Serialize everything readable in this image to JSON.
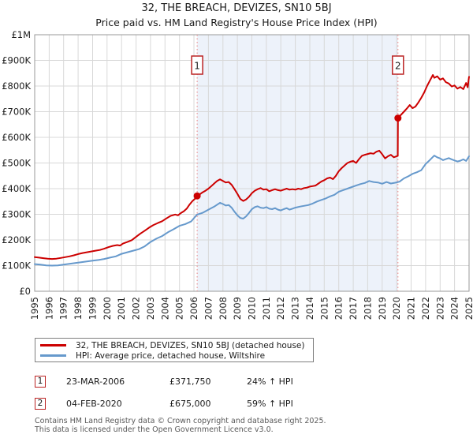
{
  "title": "32, THE BREACH, DEVIZES, SN10 5BJ",
  "subtitle": "Price paid vs. HM Land Registry's House Price Index (HPI)",
  "colors": {
    "property_line": "#cc0000",
    "hpi_line": "#6699cc",
    "shade": "#edf2fa",
    "grid": "#d8d8d8",
    "plot_border": "#999999",
    "event_line": "#e88080",
    "marker_box_border": "#bb2222",
    "marker_dot": "#cc0000",
    "axis_text": "#1a1a1a",
    "footer_text": "#5a5a5a"
  },
  "chart_data": {
    "type": "line",
    "title": "32, THE BREACH, DEVIZES, SN10 5BJ — Price paid vs. HPI",
    "xlabel": "",
    "ylabel": "",
    "x_range": [
      1995,
      2025
    ],
    "y_range_gbp": [
      0,
      1000000
    ],
    "grid": true,
    "legend_position": "bottom",
    "x_ticks": [
      1995,
      1996,
      1997,
      1998,
      1999,
      2000,
      2001,
      2002,
      2003,
      2004,
      2005,
      2006,
      2007,
      2008,
      2009,
      2010,
      2011,
      2012,
      2013,
      2014,
      2015,
      2016,
      2017,
      2018,
      2019,
      2020,
      2021,
      2022,
      2023,
      2024,
      2025
    ],
    "y_ticks": [
      {
        "label": "£0",
        "value": 0
      },
      {
        "label": "£100K",
        "value": 100
      },
      {
        "label": "£200K",
        "value": 200
      },
      {
        "label": "£300K",
        "value": 300
      },
      {
        "label": "£400K",
        "value": 400
      },
      {
        "label": "£500K",
        "value": 500
      },
      {
        "label": "£600K",
        "value": 600
      },
      {
        "label": "£700K",
        "value": 700
      },
      {
        "label": "£800K",
        "value": 800
      },
      {
        "label": "£900K",
        "value": 900
      },
      {
        "label": "£1M",
        "value": 1000
      }
    ],
    "shaded_region": {
      "from": 2006.22,
      "to": 2020.09
    },
    "sale_markers": [
      {
        "num": "1",
        "year": 2006.22,
        "value_k": 371.75
      },
      {
        "num": "2",
        "year": 2020.09,
        "value_k": 675
      }
    ],
    "series": [
      {
        "name": "32, THE BREACH, DEVIZES, SN10 5BJ (detached house)",
        "color_key": "property_line",
        "points": [
          [
            1995.0,
            133
          ],
          [
            1995.3,
            131
          ],
          [
            1995.6,
            129
          ],
          [
            1995.9,
            127
          ],
          [
            1996.2,
            126
          ],
          [
            1996.5,
            127
          ],
          [
            1996.8,
            130
          ],
          [
            1997.1,
            133
          ],
          [
            1997.4,
            136
          ],
          [
            1997.7,
            140
          ],
          [
            1998.0,
            145
          ],
          [
            1998.3,
            149
          ],
          [
            1998.6,
            152
          ],
          [
            1998.9,
            155
          ],
          [
            1999.2,
            158
          ],
          [
            1999.5,
            161
          ],
          [
            1999.8,
            166
          ],
          [
            2000.1,
            172
          ],
          [
            2000.4,
            177
          ],
          [
            2000.7,
            180
          ],
          [
            2000.9,
            178
          ],
          [
            2001.1,
            186
          ],
          [
            2001.4,
            192
          ],
          [
            2001.7,
            199
          ],
          [
            2002.0,
            212
          ],
          [
            2002.3,
            225
          ],
          [
            2002.6,
            236
          ],
          [
            2002.9,
            248
          ],
          [
            2003.2,
            258
          ],
          [
            2003.5,
            266
          ],
          [
            2003.8,
            273
          ],
          [
            2004.1,
            284
          ],
          [
            2004.4,
            294
          ],
          [
            2004.7,
            299
          ],
          [
            2004.9,
            296
          ],
          [
            2005.1,
            305
          ],
          [
            2005.3,
            312
          ],
          [
            2005.5,
            322
          ],
          [
            2005.7,
            338
          ],
          [
            2005.9,
            352
          ],
          [
            2006.1,
            362
          ],
          [
            2006.22,
            371.75
          ],
          [
            2006.4,
            378
          ],
          [
            2006.6,
            386
          ],
          [
            2006.8,
            392
          ],
          [
            2007.0,
            400
          ],
          [
            2007.2,
            410
          ],
          [
            2007.4,
            420
          ],
          [
            2007.6,
            430
          ],
          [
            2007.8,
            436
          ],
          [
            2008.0,
            430
          ],
          [
            2008.2,
            424
          ],
          [
            2008.4,
            426
          ],
          [
            2008.6,
            415
          ],
          [
            2008.8,
            398
          ],
          [
            2009.0,
            380
          ],
          [
            2009.2,
            360
          ],
          [
            2009.4,
            352
          ],
          [
            2009.6,
            358
          ],
          [
            2009.8,
            368
          ],
          [
            2010.0,
            382
          ],
          [
            2010.2,
            392
          ],
          [
            2010.4,
            398
          ],
          [
            2010.6,
            402
          ],
          [
            2010.8,
            396
          ],
          [
            2011.0,
            398
          ],
          [
            2011.2,
            390
          ],
          [
            2011.4,
            394
          ],
          [
            2011.6,
            398
          ],
          [
            2011.8,
            394
          ],
          [
            2012.0,
            392
          ],
          [
            2012.2,
            396
          ],
          [
            2012.4,
            400
          ],
          [
            2012.6,
            396
          ],
          [
            2012.8,
            398
          ],
          [
            2013.0,
            396
          ],
          [
            2013.2,
            400
          ],
          [
            2013.4,
            398
          ],
          [
            2013.6,
            402
          ],
          [
            2013.8,
            404
          ],
          [
            2014.0,
            408
          ],
          [
            2014.2,
            410
          ],
          [
            2014.4,
            412
          ],
          [
            2014.6,
            420
          ],
          [
            2014.8,
            428
          ],
          [
            2015.0,
            433
          ],
          [
            2015.2,
            440
          ],
          [
            2015.4,
            443
          ],
          [
            2015.6,
            437
          ],
          [
            2015.8,
            450
          ],
          [
            2016.0,
            468
          ],
          [
            2016.2,
            480
          ],
          [
            2016.4,
            490
          ],
          [
            2016.6,
            500
          ],
          [
            2016.8,
            505
          ],
          [
            2017.0,
            508
          ],
          [
            2017.2,
            500
          ],
          [
            2017.4,
            515
          ],
          [
            2017.6,
            528
          ],
          [
            2017.8,
            532
          ],
          [
            2018.0,
            535
          ],
          [
            2018.2,
            538
          ],
          [
            2018.4,
            536
          ],
          [
            2018.6,
            544
          ],
          [
            2018.8,
            548
          ],
          [
            2019.0,
            534
          ],
          [
            2019.2,
            518
          ],
          [
            2019.4,
            526
          ],
          [
            2019.6,
            532
          ],
          [
            2019.8,
            522
          ],
          [
            2020.08,
            528
          ],
          [
            2020.09,
            675
          ],
          [
            2020.3,
            688
          ],
          [
            2020.5,
            700
          ],
          [
            2020.7,
            712
          ],
          [
            2020.9,
            726
          ],
          [
            2021.1,
            714
          ],
          [
            2021.3,
            720
          ],
          [
            2021.5,
            736
          ],
          [
            2021.7,
            754
          ],
          [
            2021.9,
            775
          ],
          [
            2022.1,
            800
          ],
          [
            2022.3,
            822
          ],
          [
            2022.5,
            843
          ],
          [
            2022.6,
            832
          ],
          [
            2022.8,
            838
          ],
          [
            2023.0,
            825
          ],
          [
            2023.2,
            830
          ],
          [
            2023.4,
            815
          ],
          [
            2023.6,
            810
          ],
          [
            2023.8,
            798
          ],
          [
            2024.0,
            802
          ],
          [
            2024.2,
            790
          ],
          [
            2024.4,
            796
          ],
          [
            2024.6,
            788
          ],
          [
            2024.8,
            812
          ],
          [
            2024.9,
            795
          ],
          [
            2025.0,
            836
          ]
        ]
      },
      {
        "name": "HPI: Average price, detached house, Wiltshire",
        "color_key": "hpi_line",
        "points": [
          [
            1995.0,
            106
          ],
          [
            1995.4,
            104
          ],
          [
            1995.8,
            101
          ],
          [
            1996.2,
            100
          ],
          [
            1996.6,
            101
          ],
          [
            1997.0,
            104
          ],
          [
            1997.4,
            107
          ],
          [
            1997.8,
            110
          ],
          [
            1998.2,
            113
          ],
          [
            1998.6,
            116
          ],
          [
            1999.0,
            119
          ],
          [
            1999.4,
            122
          ],
          [
            1999.8,
            126
          ],
          [
            2000.2,
            131
          ],
          [
            2000.6,
            136
          ],
          [
            2001.0,
            146
          ],
          [
            2001.4,
            152
          ],
          [
            2001.8,
            158
          ],
          [
            2002.2,
            164
          ],
          [
            2002.6,
            175
          ],
          [
            2003.0,
            192
          ],
          [
            2003.4,
            205
          ],
          [
            2003.8,
            215
          ],
          [
            2004.2,
            230
          ],
          [
            2004.6,
            242
          ],
          [
            2005.0,
            255
          ],
          [
            2005.4,
            262
          ],
          [
            2005.8,
            272
          ],
          [
            2006.2,
            298
          ],
          [
            2006.6,
            306
          ],
          [
            2007.0,
            318
          ],
          [
            2007.4,
            330
          ],
          [
            2007.8,
            345
          ],
          [
            2008.0,
            340
          ],
          [
            2008.2,
            334
          ],
          [
            2008.4,
            336
          ],
          [
            2008.6,
            326
          ],
          [
            2008.8,
            310
          ],
          [
            2009.0,
            296
          ],
          [
            2009.2,
            286
          ],
          [
            2009.4,
            283
          ],
          [
            2009.6,
            292
          ],
          [
            2009.8,
            305
          ],
          [
            2010.0,
            320
          ],
          [
            2010.2,
            328
          ],
          [
            2010.4,
            331
          ],
          [
            2010.6,
            326
          ],
          [
            2010.8,
            324
          ],
          [
            2011.0,
            328
          ],
          [
            2011.2,
            322
          ],
          [
            2011.4,
            320
          ],
          [
            2011.6,
            324
          ],
          [
            2011.8,
            318
          ],
          [
            2012.0,
            315
          ],
          [
            2012.2,
            320
          ],
          [
            2012.4,
            324
          ],
          [
            2012.6,
            318
          ],
          [
            2012.8,
            322
          ],
          [
            2013.0,
            326
          ],
          [
            2013.3,
            330
          ],
          [
            2013.6,
            333
          ],
          [
            2013.9,
            336
          ],
          [
            2014.2,
            342
          ],
          [
            2014.5,
            350
          ],
          [
            2014.8,
            356
          ],
          [
            2015.1,
            362
          ],
          [
            2015.4,
            370
          ],
          [
            2015.7,
            376
          ],
          [
            2016.0,
            388
          ],
          [
            2016.3,
            394
          ],
          [
            2016.6,
            400
          ],
          [
            2016.9,
            406
          ],
          [
            2017.2,
            412
          ],
          [
            2017.5,
            418
          ],
          [
            2017.8,
            422
          ],
          [
            2018.1,
            430
          ],
          [
            2018.4,
            426
          ],
          [
            2018.7,
            424
          ],
          [
            2019.0,
            419
          ],
          [
            2019.3,
            426
          ],
          [
            2019.6,
            420
          ],
          [
            2019.9,
            423
          ],
          [
            2020.2,
            427
          ],
          [
            2020.5,
            440
          ],
          [
            2020.8,
            448
          ],
          [
            2021.1,
            458
          ],
          [
            2021.4,
            464
          ],
          [
            2021.7,
            472
          ],
          [
            2022.0,
            496
          ],
          [
            2022.3,
            512
          ],
          [
            2022.6,
            529
          ],
          [
            2022.8,
            522
          ],
          [
            2023.0,
            518
          ],
          [
            2023.2,
            511
          ],
          [
            2023.4,
            515
          ],
          [
            2023.6,
            519
          ],
          [
            2023.8,
            514
          ],
          [
            2024.0,
            510
          ],
          [
            2024.2,
            506
          ],
          [
            2024.4,
            509
          ],
          [
            2024.6,
            514
          ],
          [
            2024.8,
            508
          ],
          [
            2025.0,
            526
          ]
        ]
      }
    ]
  },
  "legend": {
    "items": [
      {
        "label": "32, THE BREACH, DEVIZES, SN10 5BJ (detached house)",
        "color_key": "property_line"
      },
      {
        "label": "HPI: Average price, detached house, Wiltshire",
        "color_key": "hpi_line"
      }
    ]
  },
  "annotations": [
    {
      "num": "1",
      "date": "23-MAR-2006",
      "price": "£371,750",
      "hpi": "24% ↑ HPI"
    },
    {
      "num": "2",
      "date": "04-FEB-2020",
      "price": "£675,000",
      "hpi": "59% ↑ HPI"
    }
  ],
  "footer": {
    "line1": "Contains HM Land Registry data © Crown copyright and database right 2025.",
    "line2": "This data is licensed under the Open Government Licence v3.0."
  }
}
